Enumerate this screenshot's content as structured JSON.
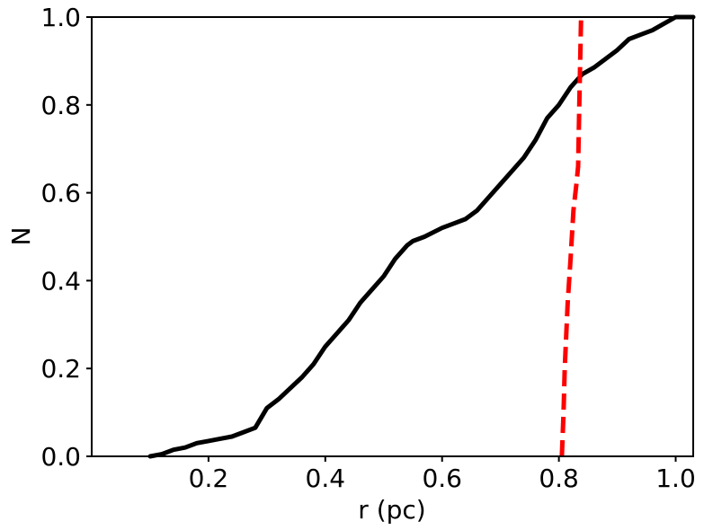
{
  "chart_data": {
    "type": "line",
    "title": "",
    "xlabel": "r (pc)",
    "ylabel": "N",
    "xlim": [
      0.0,
      1.03
    ],
    "ylim": [
      0.0,
      1.0
    ],
    "x_ticks": [
      0.2,
      0.4,
      0.6,
      0.8,
      1.0
    ],
    "x_tick_labels": [
      "0.2",
      "0.4",
      "0.6",
      "0.8",
      "1.0"
    ],
    "y_ticks": [
      0.0,
      0.2,
      0.4,
      0.6,
      0.8,
      1.0
    ],
    "y_tick_labels": [
      "0.0",
      "0.2",
      "0.4",
      "0.6",
      "0.8",
      "1.0"
    ],
    "grid": false,
    "legend": false,
    "series": [
      {
        "color": "#000000",
        "style": "solid",
        "x": [
          0.1,
          0.12,
          0.14,
          0.16,
          0.18,
          0.2,
          0.22,
          0.24,
          0.26,
          0.28,
          0.3,
          0.32,
          0.34,
          0.36,
          0.38,
          0.4,
          0.42,
          0.44,
          0.46,
          0.48,
          0.5,
          0.52,
          0.54,
          0.55,
          0.57,
          0.6,
          0.62,
          0.64,
          0.66,
          0.68,
          0.7,
          0.72,
          0.74,
          0.76,
          0.78,
          0.8,
          0.82,
          0.84,
          0.86,
          0.88,
          0.9,
          0.92,
          0.94,
          0.96,
          0.98,
          1.0,
          1.03
        ],
        "y": [
          0.0,
          0.005,
          0.015,
          0.02,
          0.03,
          0.035,
          0.04,
          0.045,
          0.055,
          0.065,
          0.11,
          0.13,
          0.155,
          0.18,
          0.21,
          0.25,
          0.28,
          0.31,
          0.35,
          0.38,
          0.41,
          0.45,
          0.48,
          0.49,
          0.5,
          0.52,
          0.53,
          0.54,
          0.56,
          0.59,
          0.62,
          0.65,
          0.68,
          0.72,
          0.77,
          0.8,
          0.84,
          0.87,
          0.885,
          0.905,
          0.925,
          0.95,
          0.96,
          0.97,
          0.985,
          1.0,
          1.0
        ]
      },
      {
        "color": "#ff0000",
        "style": "dashed",
        "x": [
          0.805,
          0.808,
          0.81,
          0.815,
          0.82,
          0.825,
          0.83,
          0.833,
          0.835,
          0.838
        ],
        "y": [
          0.0,
          0.1,
          0.2,
          0.35,
          0.45,
          0.56,
          0.62,
          0.66,
          0.8,
          1.0
        ]
      }
    ]
  }
}
